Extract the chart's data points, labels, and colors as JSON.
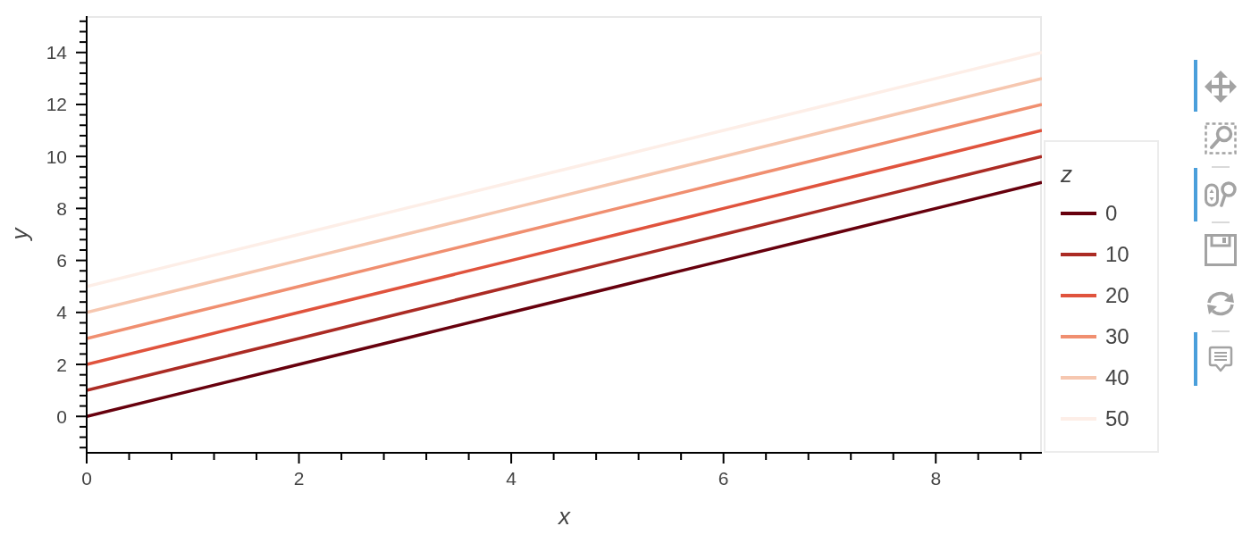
{
  "chart_data": {
    "type": "line",
    "xlabel": "x",
    "ylabel": "y",
    "legend_title": "z",
    "legend": "right",
    "x": [
      0,
      1,
      2,
      3,
      4,
      5,
      6,
      7,
      8,
      9
    ],
    "xlim": [
      0,
      9
    ],
    "xticks": [
      0,
      {
        "value": 0.4,
        "label": null
      },
      {
        "value": 0.8,
        "label": null
      },
      {
        "value": 1.2,
        "label": null
      },
      {
        "value": 1.6,
        "label": null
      },
      2,
      {
        "value": 2.4,
        "label": null
      },
      {
        "value": 2.8,
        "label": null
      },
      {
        "value": 3.2,
        "label": null
      },
      {
        "value": 3.6,
        "label": null
      },
      4,
      {
        "value": 4.4,
        "label": null
      },
      {
        "value": 4.8,
        "label": null
      },
      {
        "value": 5.2,
        "label": null
      },
      {
        "value": 5.6,
        "label": null
      },
      6,
      {
        "value": 6.4,
        "label": null
      },
      {
        "value": 6.8,
        "label": null
      },
      {
        "value": 7.2,
        "label": null
      },
      {
        "value": 7.6,
        "label": null
      },
      8,
      {
        "value": 8.4,
        "label": null
      },
      {
        "value": 8.8,
        "label": null
      }
    ],
    "ylim": [
      -1.4,
      15.4
    ],
    "yticks": [
      {
        "value": -1.2,
        "label": null
      },
      {
        "value": -0.8,
        "label": null
      },
      {
        "value": -0.4,
        "label": null
      },
      0,
      {
        "value": 0.4,
        "label": null
      },
      {
        "value": 0.8,
        "label": null
      },
      {
        "value": 1.2,
        "label": null
      },
      {
        "value": 1.6,
        "label": null
      },
      2,
      {
        "value": 2.4,
        "label": null
      },
      {
        "value": 2.8,
        "label": null
      },
      {
        "value": 3.2,
        "label": null
      },
      {
        "value": 3.6,
        "label": null
      },
      4,
      {
        "value": 4.4,
        "label": null
      },
      {
        "value": 4.8,
        "label": null
      },
      {
        "value": 5.2,
        "label": null
      },
      {
        "value": 5.6,
        "label": null
      },
      6,
      {
        "value": 6.4,
        "label": null
      },
      {
        "value": 6.8,
        "label": null
      },
      {
        "value": 7.2,
        "label": null
      },
      {
        "value": 7.6,
        "label": null
      },
      8,
      {
        "value": 8.4,
        "label": null
      },
      {
        "value": 8.8,
        "label": null
      },
      {
        "value": 9.2,
        "label": null
      },
      {
        "value": 9.6,
        "label": null
      },
      10,
      {
        "value": 10.4,
        "label": null
      },
      {
        "value": 10.8,
        "label": null
      },
      {
        "value": 11.2,
        "label": null
      },
      {
        "value": 11.6,
        "label": null
      },
      12,
      {
        "value": 12.4,
        "label": null
      },
      {
        "value": 12.8,
        "label": null
      },
      {
        "value": 13.2,
        "label": null
      },
      {
        "value": 13.6,
        "label": null
      },
      14,
      {
        "value": 14.4,
        "label": null
      },
      {
        "value": 14.8,
        "label": null
      },
      {
        "value": 15.2,
        "label": null
      }
    ],
    "series": [
      {
        "name": "0",
        "color": "#67000d",
        "values": [
          0,
          1,
          2,
          3,
          4,
          5,
          6,
          7,
          8,
          9
        ]
      },
      {
        "name": "10",
        "color": "#ab2b24",
        "values": [
          1,
          2,
          3,
          4,
          5,
          6,
          7,
          8,
          9,
          10
        ]
      },
      {
        "name": "20",
        "color": "#e0533d",
        "values": [
          2,
          3,
          4,
          5,
          6,
          7,
          8,
          9,
          10,
          11
        ]
      },
      {
        "name": "30",
        "color": "#f08f70",
        "values": [
          3,
          4,
          5,
          6,
          7,
          8,
          9,
          10,
          11,
          12
        ]
      },
      {
        "name": "40",
        "color": "#f6c7b0",
        "values": [
          4,
          5,
          6,
          7,
          8,
          9,
          10,
          11,
          12,
          13
        ]
      },
      {
        "name": "50",
        "color": "#fdeee7",
        "values": [
          5,
          6,
          7,
          8,
          9,
          10,
          11,
          12,
          13,
          14
        ]
      }
    ]
  }
}
